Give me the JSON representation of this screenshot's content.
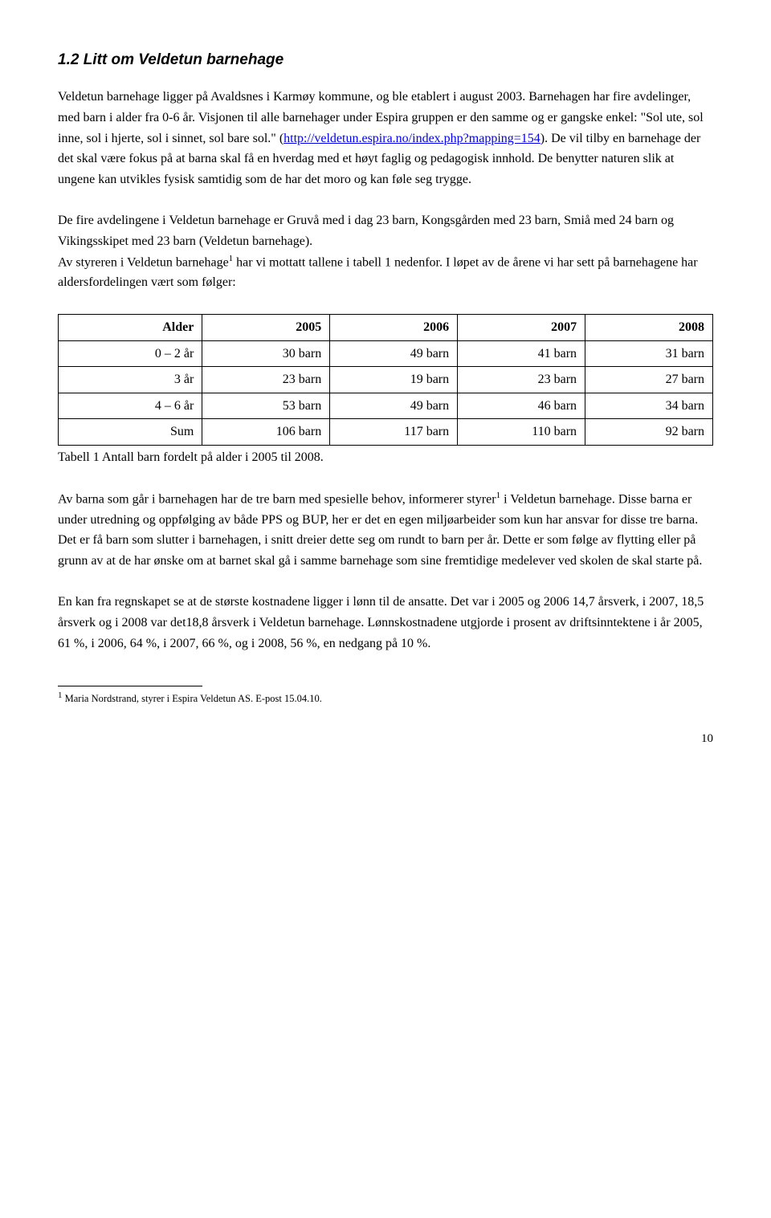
{
  "heading": "1.2 Litt om Veldetun barnehage",
  "para1_part1": "Veldetun barnehage ligger på Avaldsnes i Karmøy kommune, og ble etablert i august 2003. Barnehagen har fire avdelinger, med barn i alder fra 0-6 år. Visjonen til alle barnehager under Espira gruppen er den samme og er gangske enkel: \"Sol ute, sol inne, sol i hjerte, sol i sinnet, sol bare sol.\" (",
  "para1_link": "http://veldetun.espira.no/index.php?mapping=154",
  "para1_part2": "). De vil tilby en barnehage der det skal være fokus på at barna skal få en hverdag med et høyt faglig og pedagogisk innhold. De benytter naturen slik at ungene kan utvikles fysisk samtidig som de har det moro og kan føle seg trygge.",
  "para2": "De fire avdelingene i Veldetun barnehage er Gruvå med i dag 23 barn, Kongsgården med 23 barn, Smiå med 24 barn og Vikingsskipet med 23 barn (Veldetun barnehage).",
  "para3_part1": "Av styreren i Veldetun barnehage",
  "para3_part2": " har vi mottatt tallene i tabell 1 nedenfor. I løpet av de årene vi har sett på barnehagene har aldersfordelingen vært som følger:",
  "table": {
    "columns": [
      "Alder",
      "2005",
      "2006",
      "2007",
      "2008"
    ],
    "rows": [
      [
        "0 – 2 år",
        "30 barn",
        "49 barn",
        "41 barn",
        "31 barn"
      ],
      [
        "3 år",
        "23 barn",
        "19 barn",
        "23 barn",
        "27 barn"
      ],
      [
        "4 – 6 år",
        "53 barn",
        "49 barn",
        "46 barn",
        "34 barn"
      ],
      [
        "Sum",
        "106 barn",
        "117 barn",
        "110 barn",
        "92 barn"
      ]
    ],
    "col_widths": [
      "22%",
      "19.5%",
      "19.5%",
      "19.5%",
      "19.5%"
    ]
  },
  "table_caption": "Tabell 1 Antall barn fordelt på alder i 2005 til 2008.",
  "para4_part1": "Av barna som går i barnehagen har de tre barn med spesielle behov, informerer styrer",
  "para4_part2": " i Veldetun barnehage. Disse barna er under utredning og oppfølging av både PPS og BUP, her er det en egen miljøarbeider som kun har ansvar for disse tre barna. Det er få barn som slutter i barnehagen, i snitt dreier dette seg om rundt to barn per år. Dette er som følge av flytting eller på grunn av at de har ønske om at barnet skal gå i samme barnehage som sine fremtidige medelever ved skolen de skal starte på.",
  "para5": "En kan fra regnskapet se at de største kostnadene ligger i lønn til de ansatte. Det var i 2005 og 2006 14,7 årsverk, i 2007, 18,5 årsverk og i 2008 var det18,8 årsverk i Veldetun barnehage. Lønnskostnadene utgjorde i prosent av driftsinntektene i år 2005, 61 %, i 2006, 64 %, i 2007, 66 %, og i 2008, 56 %, en nedgang på 10 %.",
  "footnote_marker": "1",
  "footnote_text": " Maria Nordstrand, styrer i Espira Veldetun AS. E-post 15.04.10.",
  "page_number": "10"
}
